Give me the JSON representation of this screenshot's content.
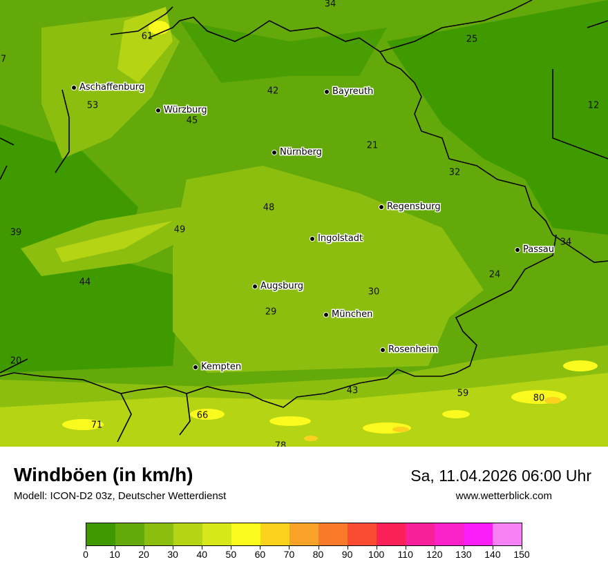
{
  "header": {
    "title": "Windböen (in km/h)",
    "model": "Modell: ICON-D2 03z, Deutscher Wetterdienst",
    "datetime": "Sa, 11.04.2026 06:00 Uhr",
    "website": "www.wetterblick.com"
  },
  "cities": [
    "Aschaffenburg",
    "Würzburg",
    "Bayreuth",
    "Nürnberg",
    "Regensburg",
    "Ingolstadt",
    "Passau",
    "Augsburg",
    "München",
    "Rosenheim",
    "Kempten"
  ],
  "values": [
    "34",
    "61",
    "25",
    "7",
    "42",
    "53",
    "45",
    "12",
    "21",
    "32",
    "48",
    "39",
    "49",
    "34",
    "44",
    "24",
    "30",
    "29",
    "20",
    "43",
    "59",
    "80",
    "66",
    "71",
    "78"
  ],
  "legend": {
    "ticks": [
      "0",
      "10",
      "20",
      "30",
      "40",
      "50",
      "60",
      "70",
      "80",
      "90",
      "100",
      "110",
      "120",
      "130",
      "140",
      "150"
    ],
    "colors": [
      "#3f9a00",
      "#63a90a",
      "#8cbe10",
      "#b4d414",
      "#d7e81a",
      "#fafa1e",
      "#fad21e",
      "#f9a22a",
      "#f97a2a",
      "#fa4c30",
      "#fa2058",
      "#f5209a",
      "#fa22c8",
      "#f81ef5",
      "#f882f5"
    ]
  }
}
